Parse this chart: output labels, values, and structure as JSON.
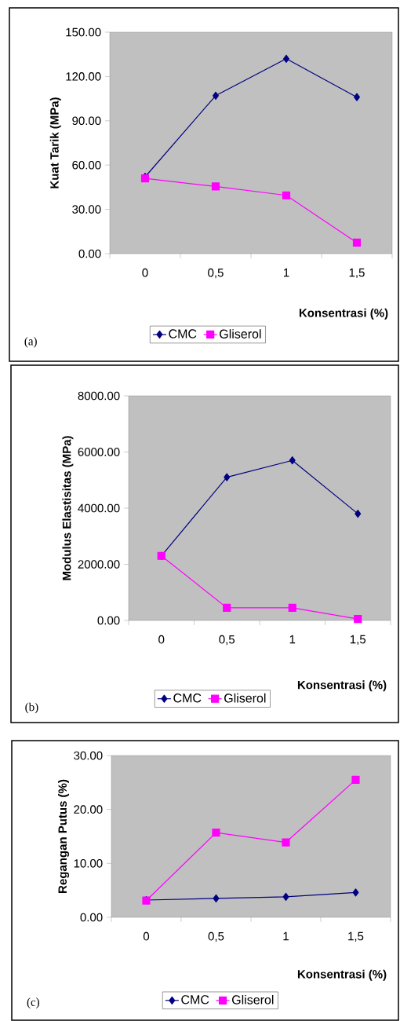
{
  "chart_data": [
    {
      "type": "line",
      "xlabel": "Konsentrasi (%)",
      "ylabel": "Kuat Tarik (MPa)",
      "categories": [
        "0",
        "0,5",
        "1",
        "1,5"
      ],
      "ylim": [
        0,
        150
      ],
      "yticks": [
        {
          "value": 0,
          "label": "0.00"
        },
        {
          "value": 30,
          "label": "30.00"
        },
        {
          "value": 60,
          "label": "60.00"
        },
        {
          "value": 90,
          "label": "90.00"
        },
        {
          "value": 120,
          "label": "120.00"
        },
        {
          "value": 150,
          "label": "150.00"
        }
      ],
      "legend": "bottom",
      "annotations": [
        "(a)"
      ],
      "series": [
        {
          "name": "CMC",
          "color": "#000080",
          "marker": "diamond",
          "values": [
            52,
            107,
            132,
            106
          ]
        },
        {
          "name": "Gliserol",
          "color": "#ff00ff",
          "marker": "square",
          "values": [
            51,
            45.5,
            39.5,
            7.5
          ]
        }
      ]
    },
    {
      "type": "line",
      "xlabel": "Konsentrasi (%)",
      "ylabel": "Modulus Elastisitas (MPa)",
      "categories": [
        "0",
        "0,5",
        "1",
        "1,5"
      ],
      "ylim": [
        0,
        8000
      ],
      "yticks": [
        {
          "value": 0,
          "label": "0.00"
        },
        {
          "value": 2000,
          "label": "2000.00"
        },
        {
          "value": 4000,
          "label": "4000.00"
        },
        {
          "value": 6000,
          "label": "6000.00"
        },
        {
          "value": 8000,
          "label": "8000.00"
        }
      ],
      "legend": "bottom",
      "annotations": [
        "(b)"
      ],
      "series": [
        {
          "name": "CMC",
          "color": "#000080",
          "marker": "diamond",
          "values": [
            2300,
            5100,
            5700,
            3800
          ]
        },
        {
          "name": "Gliserol",
          "color": "#ff00ff",
          "marker": "square",
          "values": [
            2300,
            450,
            450,
            50
          ]
        }
      ]
    },
    {
      "type": "line",
      "xlabel": "Konsentrasi (%)",
      "ylabel": "Regangan Putus (%)",
      "categories": [
        "0",
        "0,5",
        "1",
        "1,5"
      ],
      "ylim": [
        0,
        30
      ],
      "yticks": [
        {
          "value": 0,
          "label": "0.00"
        },
        {
          "value": 10,
          "label": "10.00"
        },
        {
          "value": 20,
          "label": "20.00"
        },
        {
          "value": 30,
          "label": "30.00"
        }
      ],
      "legend": "bottom",
      "annotations": [
        "(c)"
      ],
      "series": [
        {
          "name": "CMC",
          "color": "#000080",
          "marker": "diamond",
          "values": [
            3.2,
            3.5,
            3.8,
            4.6
          ]
        },
        {
          "name": "Gliserol",
          "color": "#ff00ff",
          "marker": "square",
          "values": [
            3.1,
            15.7,
            13.9,
            25.5
          ]
        }
      ]
    }
  ]
}
